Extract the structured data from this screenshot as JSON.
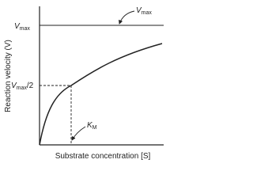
{
  "axes": {
    "y_label": "Reaction velocity (V)",
    "x_label": "Substrate concentration [S]"
  },
  "labels": {
    "vmax_axis": {
      "symbol": "V",
      "subscript": "max"
    },
    "vmax_half": {
      "symbol": "V",
      "subscript": "max",
      "suffix": "/2"
    },
    "vmax_annotation": {
      "symbol": "V",
      "subscript": "max"
    },
    "km": {
      "symbol": "K",
      "subscript": "M"
    }
  }
}
